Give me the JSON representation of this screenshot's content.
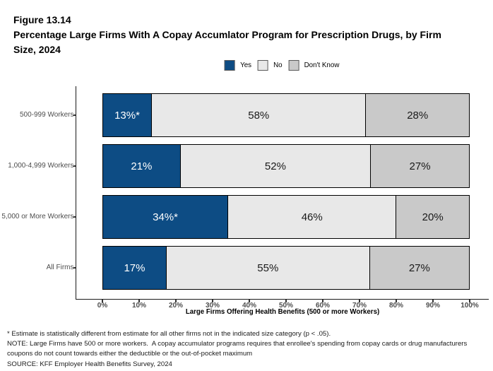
{
  "figure_label": "Figure 13.14",
  "title": "Percentage Large Firms With A Copay Accumlator Program for Prescription Drugs, by Firm Size, 2024",
  "title_lines": [
    "Figure 13.14",
    "Percentage Large Firms With A Copay Accumlator Program for Prescription Drugs, by Firm",
    "Size, 2024"
  ],
  "legend": {
    "position": "top-center",
    "items": [
      {
        "label": "Yes",
        "color": "#0D4C84"
      },
      {
        "label": "No",
        "color": "#E8E8E8"
      },
      {
        "label": "Don't Know",
        "color": "#C9C9C9"
      }
    ]
  },
  "chart_data": {
    "type": "bar",
    "orientation": "horizontal",
    "stacked": true,
    "title": "Percentage Large Firms With A Copay Accumlator Program for Prescription Drugs, by Firm Size, 2024",
    "categories": [
      "500-999 Workers",
      "1,000-4,999 Workers",
      "5,000 or More Workers",
      "All Firms"
    ],
    "series": [
      {
        "name": "Yes",
        "color": "#0D4C84",
        "label_color": "#ffffff",
        "values": [
          13,
          21,
          34,
          17
        ],
        "labels": [
          "13%*",
          "21%",
          "34%*",
          "17%"
        ]
      },
      {
        "name": "No",
        "color": "#E8E8E8",
        "label_color": "#1a1a1a",
        "values": [
          58,
          52,
          46,
          55
        ],
        "labels": [
          "58%",
          "52%",
          "46%",
          "55%"
        ]
      },
      {
        "name": "Don't Know",
        "color": "#C9C9C9",
        "label_color": "#1a1a1a",
        "values": [
          28,
          27,
          20,
          27
        ],
        "labels": [
          "28%",
          "27%",
          "20%",
          "27%"
        ]
      }
    ],
    "xlabel": "Large Firms Offering Health Benefits (500 or more Workers)",
    "xlim": [
      0,
      100
    ],
    "x_ticks": [
      0,
      10,
      20,
      30,
      40,
      50,
      60,
      70,
      80,
      90,
      100
    ],
    "x_tick_labels": [
      "0%",
      "10%",
      "20%",
      "30%",
      "40%",
      "50%",
      "60%",
      "70%",
      "80%",
      "90%",
      "100%"
    ],
    "grid": false,
    "legend_position": "top-center"
  },
  "footnotes": [
    "* Estimate is statistically different from estimate for all other firms not in the indicated size category (p < .05).",
    "NOTE: Large Firms have 500 or more workers.  A copay accumulator programs requires that enrollee's spending from copay cards or drug manufacturers",
    "coupons do not count towards either the deductible or the out-of-pocket maximum",
    "SOURCE: KFF Employer Health Benefits Survey, 2024"
  ]
}
